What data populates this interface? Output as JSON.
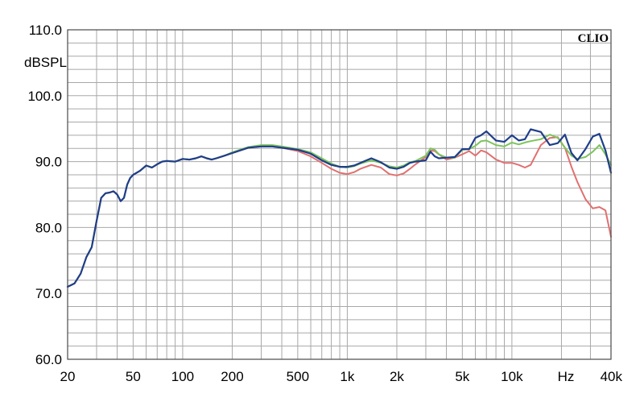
{
  "chart_data": {
    "type": "line",
    "title": "",
    "brand": "CLIO",
    "ylabel": "dBSPL",
    "xlabel_unit": "Hz",
    "xscale": "log",
    "xlim": [
      20,
      40000
    ],
    "ylim": [
      60,
      110
    ],
    "grid": true,
    "y_ticks": [
      {
        "value": 110,
        "label": "110.0"
      },
      {
        "value": 100,
        "label": "100.0"
      },
      {
        "value": 90,
        "label": "90.0"
      },
      {
        "value": 80,
        "label": "80.0"
      },
      {
        "value": 70,
        "label": "70.0"
      },
      {
        "value": 60,
        "label": "60.0"
      }
    ],
    "x_ticks": [
      {
        "value": 20,
        "label": "20"
      },
      {
        "value": 50,
        "label": "50"
      },
      {
        "value": 100,
        "label": "100"
      },
      {
        "value": 200,
        "label": "200"
      },
      {
        "value": 500,
        "label": "500"
      },
      {
        "value": 1000,
        "label": "1k"
      },
      {
        "value": 2000,
        "label": "2k"
      },
      {
        "value": 5000,
        "label": "5k"
      },
      {
        "value": 10000,
        "label": "10k"
      },
      {
        "value": 40000,
        "label": "40k"
      }
    ],
    "series": [
      {
        "color": "#e07070",
        "x": [
          20,
          22,
          24,
          26,
          28,
          30,
          32,
          34,
          36,
          38,
          40,
          42,
          44,
          46,
          48,
          50,
          55,
          60,
          65,
          70,
          75,
          80,
          90,
          100,
          110,
          120,
          130,
          140,
          150,
          160,
          180,
          200,
          250,
          300,
          350,
          400,
          500,
          600,
          700,
          800,
          900,
          1000,
          1100,
          1200,
          1400,
          1600,
          1800,
          2000,
          2200,
          2400,
          2600,
          3000,
          3200,
          3400,
          3600,
          4000,
          4500,
          5000,
          5500,
          6000,
          6500,
          7000,
          8000,
          9000,
          10000,
          11000,
          12000,
          13000,
          15000,
          17000,
          19000,
          21000,
          23000,
          25000,
          28000,
          31000,
          34000,
          37000,
          40000
        ],
        "y": [
          71,
          71.5,
          73,
          75.5,
          77,
          81,
          84.5,
          85.2,
          85.3,
          85.5,
          85,
          84,
          84.5,
          86.5,
          87.5,
          88,
          88.6,
          89.4,
          89.1,
          89.6,
          90,
          90.1,
          90,
          90.4,
          90.3,
          90.5,
          90.8,
          90.5,
          90.3,
          90.5,
          90.9,
          91.3,
          92.1,
          92.3,
          92.3,
          92.1,
          91.6,
          90.8,
          89.8,
          88.9,
          88.3,
          88.1,
          88.4,
          88.9,
          89.5,
          89.1,
          88.1,
          87.9,
          88.2,
          88.9,
          89.6,
          90.7,
          91.7,
          91.6,
          91.1,
          90.3,
          90.6,
          91.1,
          91.6,
          90.9,
          91.7,
          91.4,
          90.3,
          89.8,
          89.8,
          89.5,
          89.1,
          89.5,
          92.5,
          93.6,
          93.7,
          92.1,
          89.2,
          86.9,
          84.3,
          82.9,
          83.1,
          82.6,
          78.6
        ]
      },
      {
        "color": "#7cc45c",
        "x": [
          20,
          22,
          24,
          26,
          28,
          30,
          32,
          34,
          36,
          38,
          40,
          42,
          44,
          46,
          48,
          50,
          55,
          60,
          65,
          70,
          75,
          80,
          90,
          100,
          110,
          120,
          130,
          140,
          150,
          160,
          180,
          200,
          250,
          300,
          350,
          400,
          500,
          600,
          700,
          800,
          900,
          1000,
          1100,
          1200,
          1400,
          1600,
          1800,
          2000,
          2200,
          2400,
          2600,
          3000,
          3200,
          3400,
          3600,
          4000,
          4500,
          5000,
          5500,
          6000,
          6500,
          7000,
          8000,
          9000,
          10000,
          11000,
          12000,
          13000,
          15000,
          17000,
          19000,
          21000,
          23000,
          25000,
          28000,
          31000,
          34000,
          37000,
          40000
        ],
        "y": [
          71,
          71.5,
          73,
          75.5,
          77,
          81,
          84.5,
          85.2,
          85.3,
          85.5,
          85,
          84,
          84.5,
          86.5,
          87.5,
          88,
          88.6,
          89.4,
          89.1,
          89.6,
          90,
          90.1,
          90,
          90.4,
          90.3,
          90.5,
          90.8,
          90.5,
          90.3,
          90.5,
          90.9,
          91.4,
          92.2,
          92.5,
          92.5,
          92.3,
          91.9,
          91.4,
          90.5,
          89.7,
          89.2,
          89.1,
          89.3,
          89.7,
          90.2,
          89.8,
          89.3,
          89.1,
          89.4,
          89.9,
          90.1,
          90.9,
          92,
          91.8,
          91.1,
          90.6,
          90.6,
          91.8,
          91.9,
          92.4,
          93.1,
          93.2,
          92.5,
          92.3,
          92.9,
          92.6,
          92.9,
          93.1,
          93.4,
          94.1,
          93.6,
          92.1,
          90.9,
          90.4,
          90.7,
          91.5,
          92.5,
          91.1,
          89.5
        ]
      },
      {
        "color": "#1f3e8a",
        "x": [
          20,
          22,
          24,
          26,
          28,
          30,
          32,
          34,
          36,
          38,
          40,
          42,
          44,
          46,
          48,
          50,
          55,
          60,
          65,
          70,
          75,
          80,
          90,
          100,
          110,
          120,
          130,
          140,
          150,
          160,
          180,
          200,
          250,
          300,
          350,
          400,
          500,
          600,
          700,
          800,
          900,
          1000,
          1100,
          1200,
          1400,
          1600,
          1800,
          2000,
          2200,
          2400,
          2600,
          3000,
          3200,
          3400,
          3600,
          4000,
          4500,
          5000,
          5500,
          6000,
          6500,
          7000,
          8000,
          9000,
          10000,
          11000,
          12000,
          13000,
          15000,
          17000,
          19000,
          21000,
          23000,
          25000,
          28000,
          31000,
          34000,
          37000,
          40000
        ],
        "y": [
          71,
          71.5,
          73,
          75.5,
          77,
          81,
          84.5,
          85.2,
          85.3,
          85.5,
          85,
          84,
          84.5,
          86.5,
          87.5,
          88,
          88.6,
          89.4,
          89.1,
          89.6,
          90,
          90.1,
          90,
          90.4,
          90.3,
          90.5,
          90.8,
          90.5,
          90.3,
          90.5,
          90.9,
          91.3,
          92.1,
          92.3,
          92.3,
          92.1,
          91.8,
          91.2,
          90.2,
          89.5,
          89.2,
          89.2,
          89.4,
          89.8,
          90.5,
          89.9,
          89.1,
          88.9,
          89.2,
          89.8,
          90,
          90.2,
          91.5,
          90.8,
          90.5,
          90.6,
          90.7,
          91.9,
          91.9,
          93.6,
          94,
          94.6,
          93.2,
          93,
          94,
          93.2,
          93.4,
          94.9,
          94.5,
          92.5,
          92.8,
          94.1,
          91.3,
          90.2,
          91.9,
          93.8,
          94.2,
          91.7,
          88.3
        ]
      }
    ]
  }
}
